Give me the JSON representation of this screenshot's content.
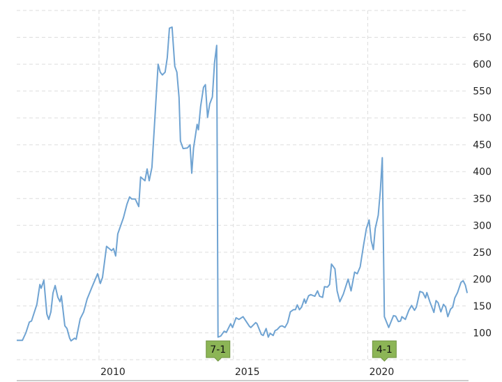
{
  "chart_data": {
    "type": "line",
    "title": "",
    "xlabel": "",
    "ylabel": "",
    "xlim": [
      2006.94,
      2023.75
    ],
    "ylim": [
      50,
      700
    ],
    "grid": true,
    "x_ticks": [
      2010,
      2015,
      2020
    ],
    "x_tick_labels": [
      "2010",
      "2015",
      "2020"
    ],
    "y_ticks": [
      100,
      150,
      200,
      250,
      300,
      350,
      400,
      450,
      500,
      550,
      600,
      650
    ],
    "y_tick_labels": [
      "100",
      "150",
      "200",
      "250",
      "300",
      "350",
      "400",
      "450",
      "500",
      "550",
      "600",
      "650"
    ],
    "y_axis_side": "right",
    "line_color": "#6fa3d2",
    "grid_color": "#dddddd",
    "annotations": [
      {
        "x": 2014.43,
        "label": "7-1",
        "color": "#8cb556"
      },
      {
        "x": 2020.62,
        "label": "4-1",
        "color": "#8cb556"
      }
    ],
    "series": [
      {
        "x": [
          2006.94,
          2007.15,
          2007.28,
          2007.41,
          2007.49,
          2007.69,
          2007.8,
          2007.85,
          2007.95,
          2008.06,
          2008.13,
          2008.21,
          2008.29,
          2008.37,
          2008.47,
          2008.55,
          2008.6,
          2008.73,
          2008.81,
          2008.91,
          2008.96,
          2009.09,
          2009.15,
          2009.3,
          2009.43,
          2009.56,
          2009.74,
          2009.95,
          2010.05,
          2010.13,
          2010.28,
          2010.47,
          2010.54,
          2010.62,
          2010.7,
          2010.91,
          2011.04,
          2011.14,
          2011.22,
          2011.35,
          2011.48,
          2011.55,
          2011.71,
          2011.79,
          2011.87,
          2011.97,
          2012.2,
          2012.28,
          2012.36,
          2012.46,
          2012.54,
          2012.62,
          2012.72,
          2012.82,
          2012.9,
          2012.98,
          2013.03,
          2013.13,
          2013.29,
          2013.39,
          2013.45,
          2013.52,
          2013.65,
          2013.7,
          2013.78,
          2013.89,
          2013.96,
          2014.04,
          2014.12,
          2014.22,
          2014.3,
          2014.38,
          2014.43,
          2014.53,
          2014.66,
          2014.74,
          2014.9,
          2014.97,
          2015.1,
          2015.21,
          2015.36,
          2015.6,
          2015.65,
          2015.83,
          2015.88,
          2016.04,
          2016.11,
          2016.22,
          2016.3,
          2016.37,
          2016.48,
          2016.55,
          2016.63,
          2016.74,
          2016.81,
          2016.92,
          2017.02,
          2017.12,
          2017.23,
          2017.31,
          2017.38,
          2017.46,
          2017.54,
          2017.64,
          2017.69,
          2017.8,
          2017.88,
          2018.03,
          2018.13,
          2018.21,
          2018.32,
          2018.39,
          2018.5,
          2018.58,
          2018.65,
          2018.78,
          2018.86,
          2018.96,
          2019.09,
          2019.27,
          2019.38,
          2019.51,
          2019.61,
          2019.72,
          2019.84,
          2019.95,
          2020.05,
          2020.13,
          2020.21,
          2020.28,
          2020.39,
          2020.47,
          2020.54,
          2020.62,
          2020.78,
          2020.96,
          2021.04,
          2021.14,
          2021.22,
          2021.27,
          2021.4,
          2021.53,
          2021.63,
          2021.74,
          2021.81,
          2021.94,
          2022.05,
          2022.15,
          2022.2,
          2022.31,
          2022.46,
          2022.54,
          2022.62,
          2022.72,
          2022.82,
          2022.9,
          2022.98,
          2023.08,
          2023.16,
          2023.24,
          2023.34,
          2023.47,
          2023.55,
          2023.63,
          2023.7
        ],
        "y": [
          86,
          86,
          100,
          120,
          122,
          153,
          190,
          183,
          198,
          135,
          125,
          139,
          174,
          188,
          166,
          158,
          169,
          113,
          108,
          90,
          85,
          90,
          88,
          126,
          139,
          163,
          185,
          210,
          192,
          203,
          261,
          253,
          257,
          243,
          284,
          314,
          339,
          353,
          349,
          349,
          335,
          390,
          383,
          405,
          383,
          408,
          600,
          585,
          580,
          585,
          612,
          667,
          669,
          596,
          585,
          538,
          457,
          443,
          444,
          450,
          397,
          444,
          488,
          478,
          521,
          557,
          562,
          501,
          526,
          539,
          603,
          635,
          92,
          94,
          103,
          101,
          117,
          110,
          128,
          125,
          130,
          112,
          110,
          119,
          117,
          97,
          95,
          108,
          92,
          99,
          95,
          104,
          106,
          112,
          113,
          110,
          119,
          139,
          143,
          143,
          152,
          143,
          148,
          163,
          155,
          169,
          171,
          168,
          178,
          168,
          166,
          186,
          185,
          190,
          228,
          219,
          178,
          158,
          172,
          200,
          178,
          213,
          210,
          223,
          262,
          294,
          310,
          271,
          255,
          294,
          319,
          366,
          426,
          130,
          110,
          132,
          131,
          121,
          122,
          130,
          125,
          142,
          151,
          142,
          148,
          177,
          175,
          165,
          175,
          158,
          138,
          160,
          156,
          139,
          153,
          148,
          130,
          144,
          148,
          165,
          175,
          194,
          197,
          189,
          174
        ]
      }
    ]
  }
}
